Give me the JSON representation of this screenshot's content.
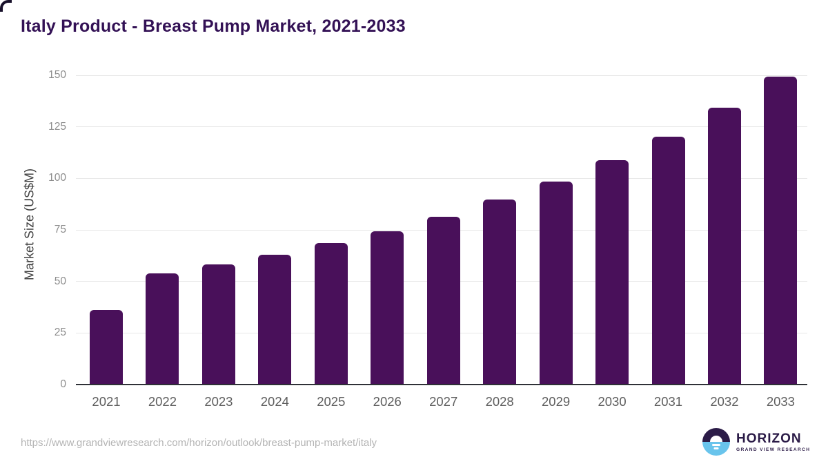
{
  "title": "Italy Product - Breast Pump Market, 2021-2033",
  "footer": {
    "source_url": "https://www.grandviewresearch.com/horizon/outlook/breast-pump-market/italy",
    "logo": {
      "brand": "HORIZON",
      "sub_brand": "GRAND VIEW RESEARCH"
    }
  },
  "colors": {
    "background": "#ffffff",
    "bar": "#49105a",
    "title_text": "#331155",
    "axis_line": "#2f3137",
    "gridline": "#e8e8e8",
    "ytick_text": "#8c8c8c",
    "xtick_text": "#5e5e5e",
    "yaxis_title_text": "#404040",
    "url_text": "#b4b4b4",
    "logo_purple": "#2b1b47",
    "logo_blue": "#69c4ec",
    "corner_artifact": "#17102a"
  },
  "chart_data": {
    "type": "bar",
    "title": "Italy Product - Breast Pump Market, 2021-2033",
    "xlabel": "",
    "ylabel": "Market Size (US$M)",
    "categories": [
      "2021",
      "2022",
      "2023",
      "2024",
      "2025",
      "2026",
      "2027",
      "2028",
      "2029",
      "2030",
      "2031",
      "2032",
      "2033"
    ],
    "values": [
      36.2,
      54.0,
      58.3,
      62.9,
      68.5,
      74.4,
      81.3,
      89.7,
      98.6,
      108.9,
      120.1,
      134.1,
      149.2
    ],
    "ylim": [
      0,
      150
    ],
    "yticks": [
      0,
      25,
      50,
      75,
      100,
      125,
      150
    ],
    "grid": "horizontal",
    "legend": "none",
    "bar_color": "#49105a"
  }
}
